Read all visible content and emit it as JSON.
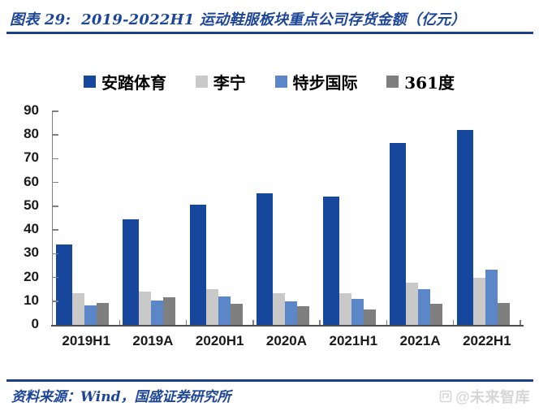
{
  "header": {
    "title": "图表 29:  2019-2022H1 运动鞋服板块重点公司存货金额（亿元）"
  },
  "chart_data": {
    "type": "bar",
    "title": "2019-2022H1 运动鞋服板块重点公司存货金额（亿元）",
    "unit": "亿元",
    "categories": [
      "2019H1",
      "2019A",
      "2020H1",
      "2020A",
      "2021H1",
      "2021A",
      "2022H1"
    ],
    "series": [
      {
        "name": "安踏体育",
        "color": "#17479D",
        "values": [
          33.8,
          44.6,
          50.5,
          55.4,
          54.1,
          76.5,
          82.3
        ]
      },
      {
        "name": "李宁",
        "color": "#C9C9C9",
        "values": [
          13.4,
          14.2,
          15.0,
          13.5,
          13.4,
          17.7,
          19.8
        ]
      },
      {
        "name": "特步国际",
        "color": "#5B87C9",
        "values": [
          8.3,
          10.4,
          12.1,
          10.0,
          11.0,
          14.9,
          23.2
        ]
      },
      {
        "name": "361度",
        "color": "#7F7F7F",
        "values": [
          9.4,
          11.6,
          8.9,
          7.8,
          6.4,
          9.0,
          9.2
        ]
      }
    ],
    "ylim": [
      0,
      90
    ],
    "ytick_step": 10,
    "grid": false,
    "legend_position": "top"
  },
  "footer": {
    "source": "资料来源：Wind，国盛证券研究所",
    "watermark": "@未来智库"
  },
  "colors": {
    "accent_blue": "#1d4699",
    "divider_navy": "#1d3f8f",
    "axis_gray": "#808080",
    "baseline_gray": "#4d4d4d",
    "watermark_gray": "#d6d6d6"
  }
}
